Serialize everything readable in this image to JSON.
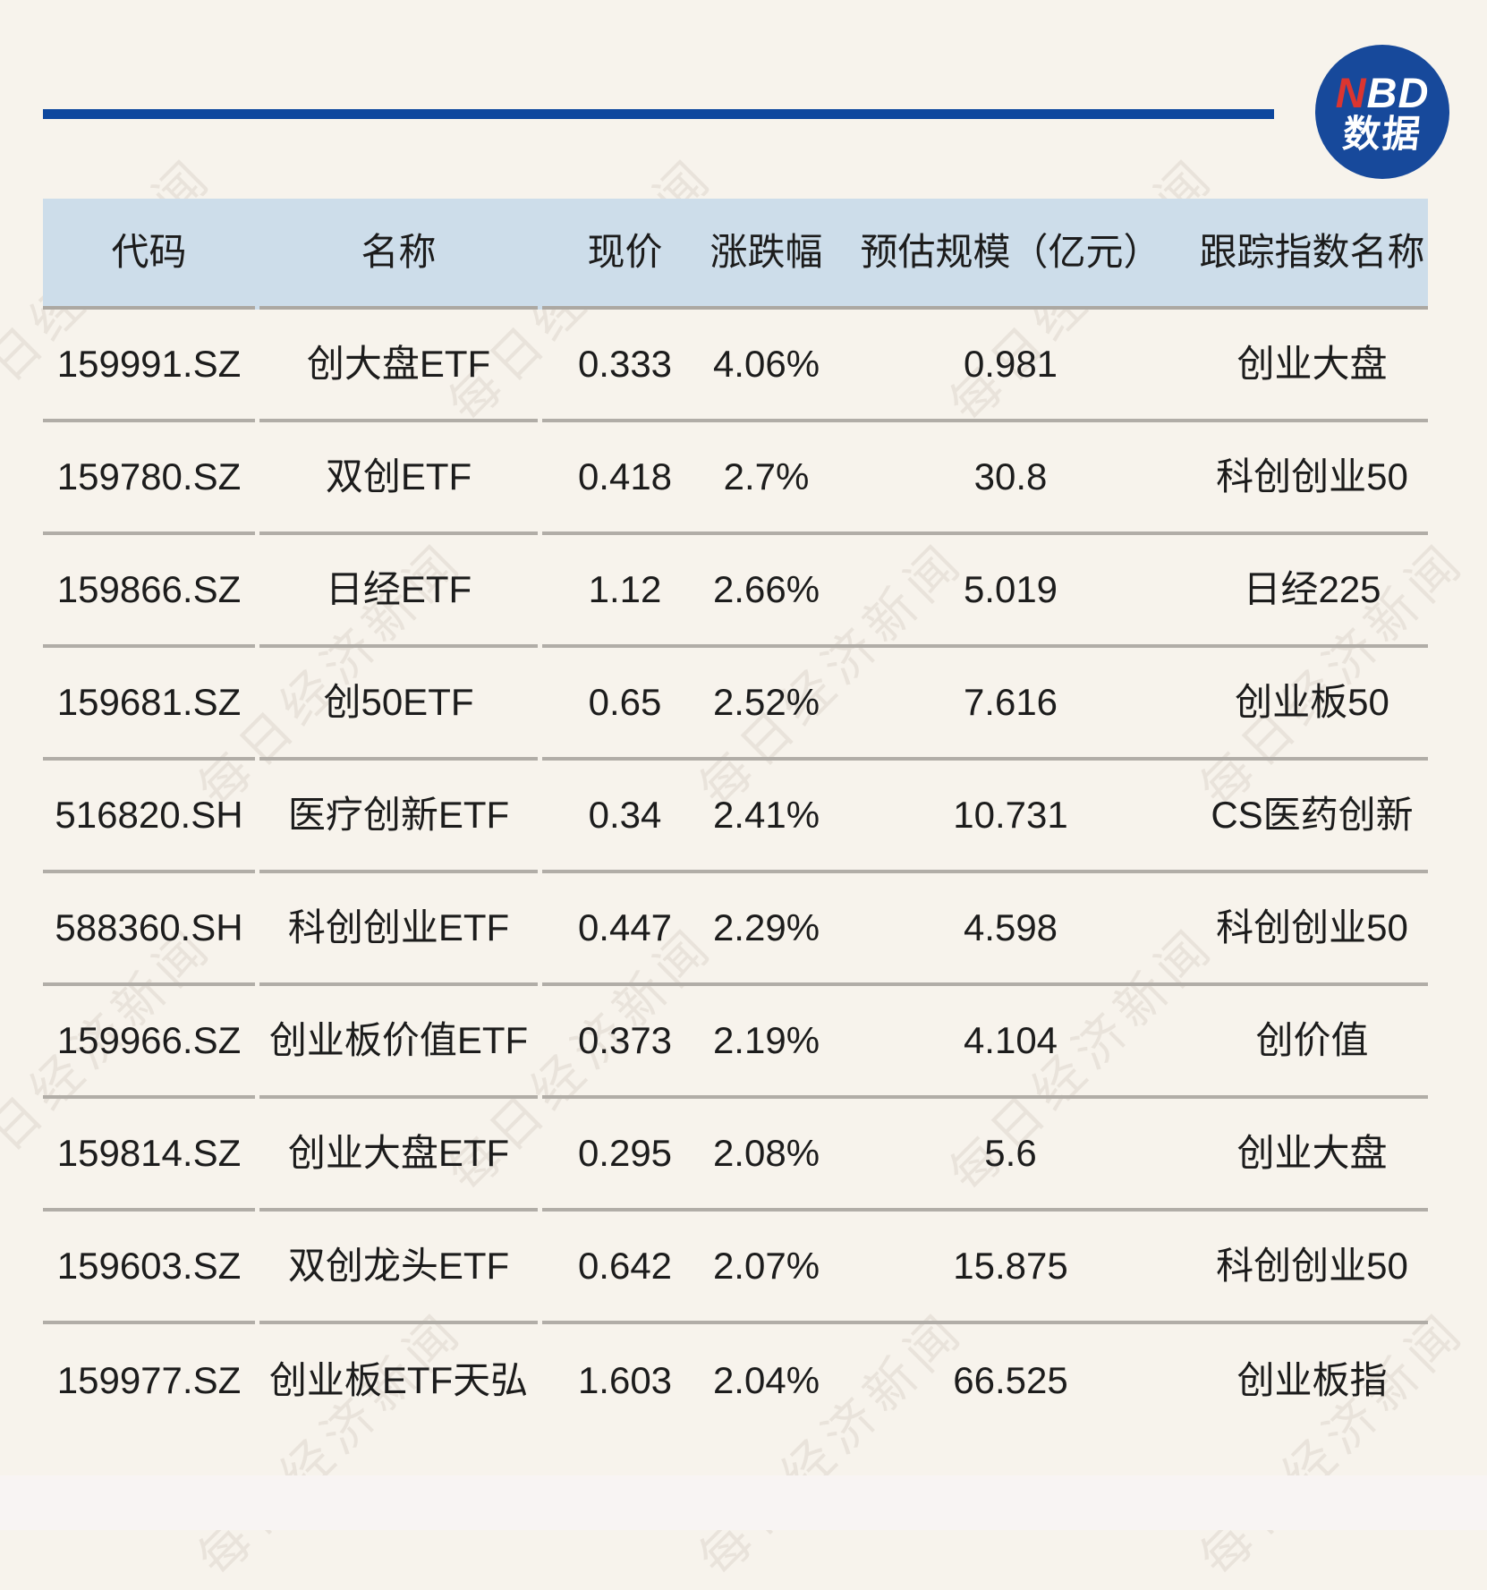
{
  "page": {
    "background_color": "#F7F3EC",
    "accent_blue": "#0D479E",
    "header_row_color": "#CDDDEA",
    "divider_color": "#B1ADA7",
    "text_color": "#1C1C1C",
    "footer_strip_color": "#F8F4F3"
  },
  "logo": {
    "text_red": "N",
    "text_white": "BD",
    "text_bottom": "数据",
    "circle_color": "#17499B",
    "red_color": "#DB3530"
  },
  "watermark": {
    "text": "每日经济新闻"
  },
  "chart_data": {
    "type": "table",
    "columns": [
      "代码",
      "名称",
      "现价",
      "涨跌幅",
      "预估规模（亿元）",
      "跟踪指数名称"
    ],
    "rows": [
      [
        "159991.SZ",
        "创大盘ETF",
        "0.333",
        "4.06%",
        "0.981",
        "创业大盘"
      ],
      [
        "159780.SZ",
        "双创ETF",
        "0.418",
        "2.7%",
        "30.8",
        "科创创业50"
      ],
      [
        "159866.SZ",
        "日经ETF",
        "1.12",
        "2.66%",
        "5.019",
        "日经225"
      ],
      [
        "159681.SZ",
        "创50ETF",
        "0.65",
        "2.52%",
        "7.616",
        "创业板50"
      ],
      [
        "516820.SH",
        "医疗创新ETF",
        "0.34",
        "2.41%",
        "10.731",
        "CS医药创新"
      ],
      [
        "588360.SH",
        "科创创业ETF",
        "0.447",
        "2.29%",
        "4.598",
        "科创创业50"
      ],
      [
        "159966.SZ",
        "创业板价值ETF",
        "0.373",
        "2.19%",
        "4.104",
        "创价值"
      ],
      [
        "159814.SZ",
        "创业大盘ETF",
        "0.295",
        "2.08%",
        "5.6",
        "创业大盘"
      ],
      [
        "159603.SZ",
        "双创龙头ETF",
        "0.642",
        "2.07%",
        "15.875",
        "科创创业50"
      ],
      [
        "159977.SZ",
        "创业板ETF天弘",
        "1.603",
        "2.04%",
        "66.525",
        "创业板指"
      ]
    ],
    "legend": null,
    "grid": "horizontal-dividers-only"
  }
}
